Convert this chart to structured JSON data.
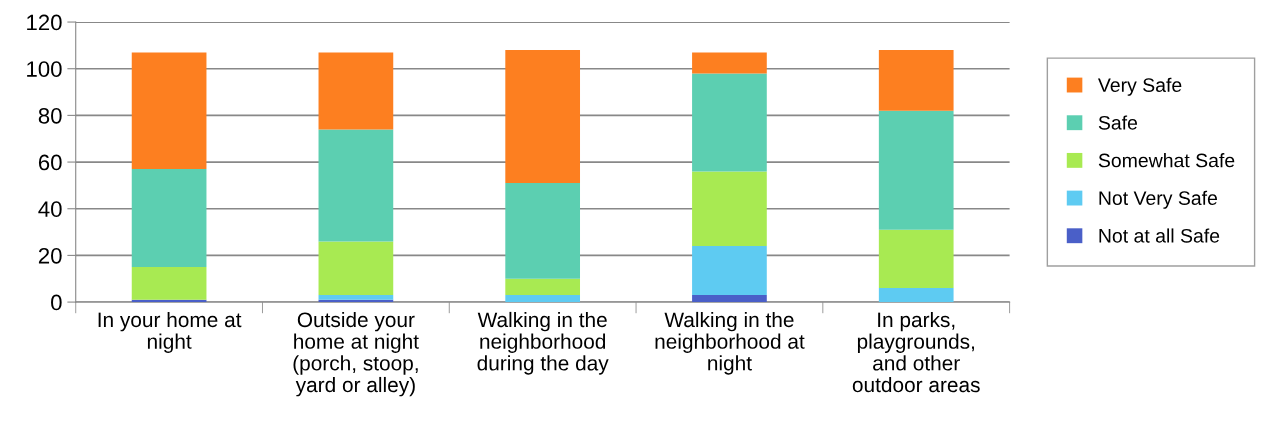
{
  "chart_data": {
    "type": "bar",
    "stacked": true,
    "categories": [
      "In your home at night",
      "Outside your home at night (porch, stoop, yard or alley)",
      "Walking in the neighborhood during the day",
      "Walking in the neighborhood at night",
      "In parks, playgrounds, and other outdoor areas"
    ],
    "series": [
      {
        "name": "Not at all Safe",
        "color": "#4a5fc8",
        "values": [
          1,
          1,
          0,
          3,
          0
        ]
      },
      {
        "name": "Not Very Safe",
        "color": "#5ecbf2",
        "values": [
          0,
          2,
          3,
          21,
          6
        ]
      },
      {
        "name": "Somewhat Safe",
        "color": "#a8ea52",
        "values": [
          14,
          23,
          7,
          32,
          25
        ]
      },
      {
        "name": "Safe",
        "color": "#5ccfb1",
        "values": [
          42,
          48,
          41,
          42,
          51
        ]
      },
      {
        "name": "Very Safe",
        "color": "#fd7f20",
        "values": [
          50,
          33,
          57,
          9,
          26
        ]
      }
    ],
    "ylim": [
      0,
      120
    ],
    "yticks": [
      0,
      20,
      40,
      60,
      80,
      100,
      120
    ],
    "grid": "y",
    "legend": "right"
  }
}
